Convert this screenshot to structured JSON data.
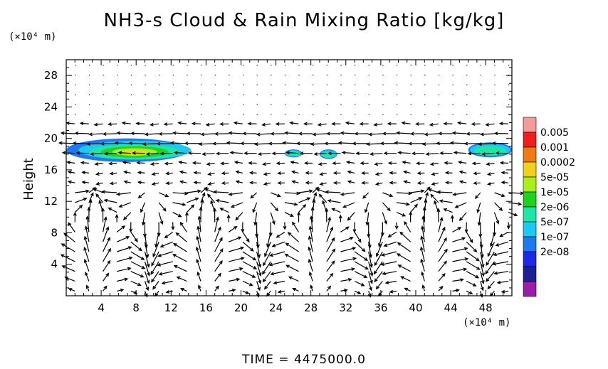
{
  "chart_data": {
    "type": "heatmap",
    "title": "NH3-s Cloud & Rain Mixing Ratio [kg/kg]",
    "ylabel": "Height",
    "x_unit": "(×10⁴ m)",
    "y_unit": "(×10⁴ m)",
    "xlim": [
      0,
      51
    ],
    "ylim": [
      0,
      30
    ],
    "x_ticks": [
      4,
      8,
      12,
      16,
      20,
      24,
      28,
      32,
      36,
      40,
      44,
      48
    ],
    "y_ticks": [
      4,
      8,
      12,
      16,
      20,
      24,
      28
    ],
    "footer": "TIME = 4475000.0",
    "legend": {
      "placement": "right",
      "levels": [
        "0.005",
        "0.001",
        "0.0002",
        "5e-05",
        "1e-05",
        "2e-06",
        "5e-07",
        "1e-07",
        "2e-08"
      ],
      "colors": [
        "#f59a9a",
        "#f01e1e",
        "#f07a14",
        "#f0d21e",
        "#aaee1e",
        "#1ed21e",
        "#1ee6a6",
        "#1ec8f0",
        "#1e78f0",
        "#1e28e6",
        "#1e1e96",
        "#9a1eaa"
      ]
    },
    "cloud_regions": [
      {
        "x": [
          0,
          14
        ],
        "y": [
          17,
          20
        ]
      },
      {
        "x": [
          25,
          27
        ],
        "y": [
          17.6,
          18.6
        ]
      },
      {
        "x": [
          29,
          31
        ],
        "y": [
          17.4,
          18.6
        ]
      },
      {
        "x": [
          46,
          51
        ],
        "y": [
          17.6,
          19.5
        ]
      }
    ]
  }
}
